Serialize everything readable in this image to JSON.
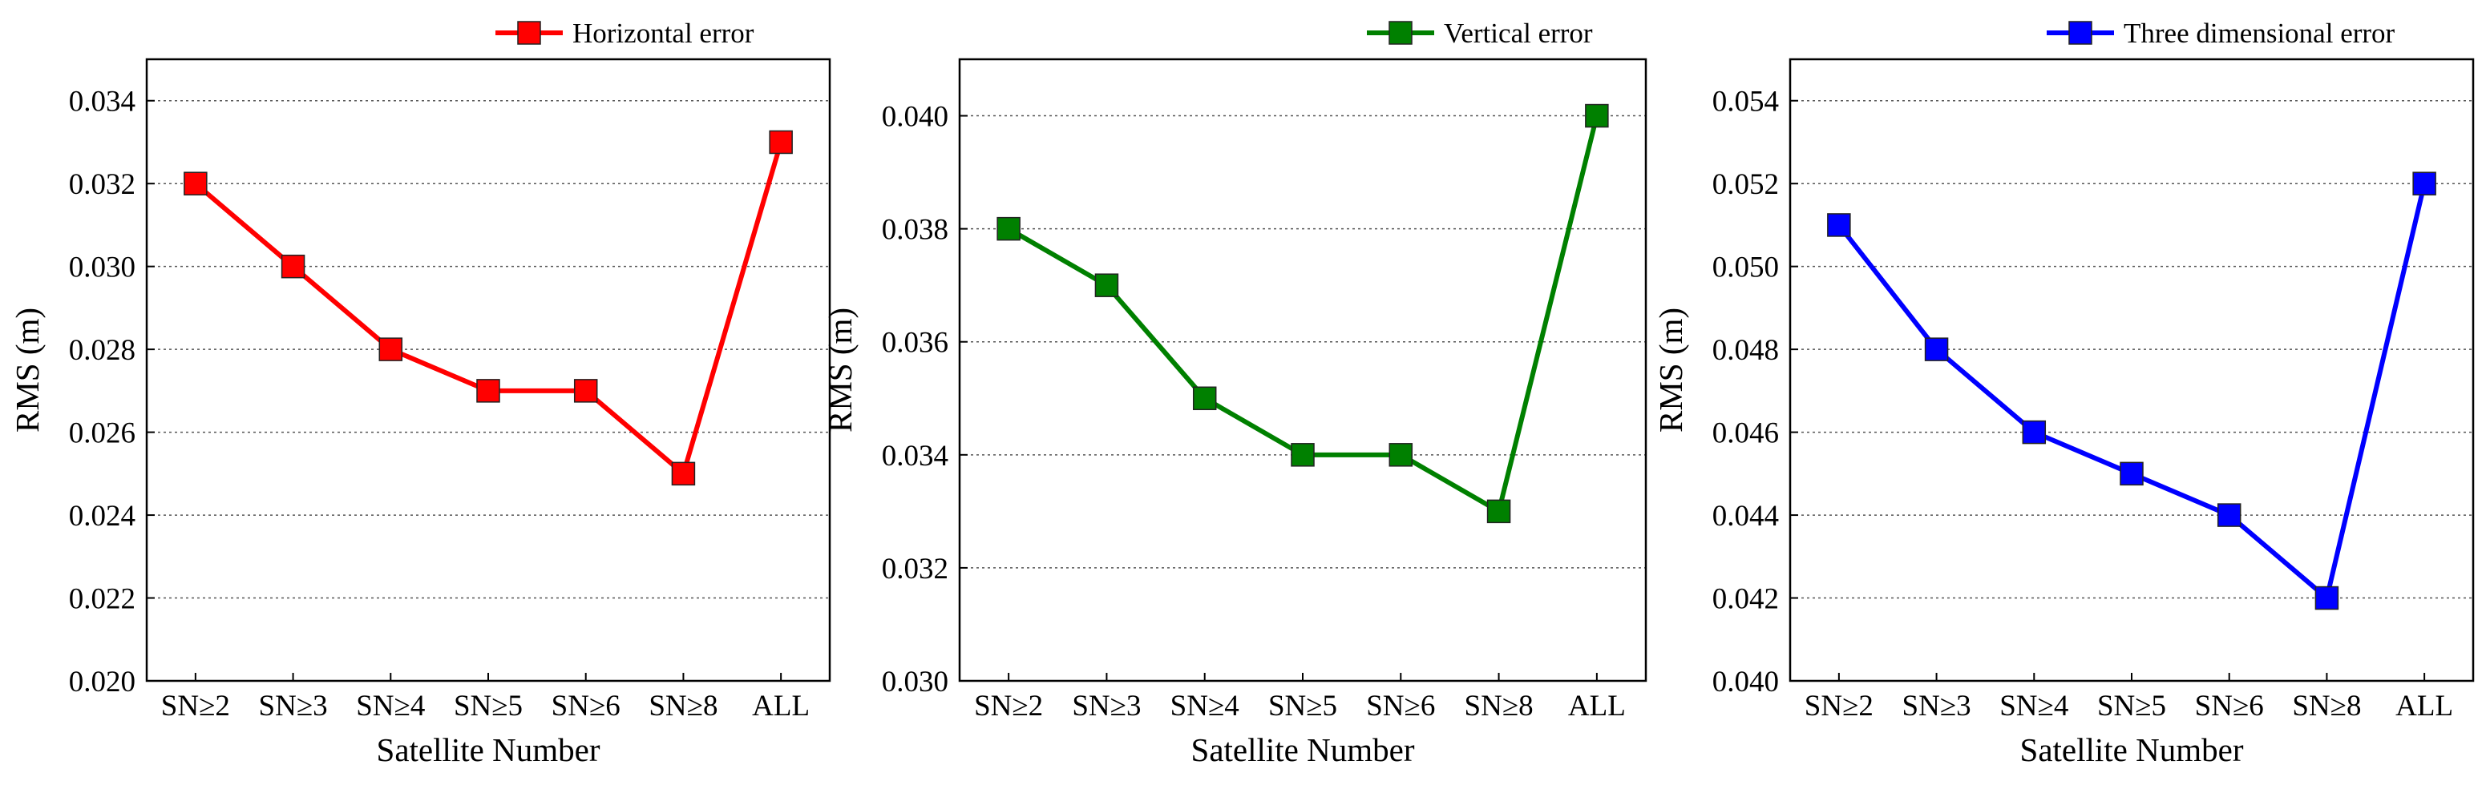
{
  "chart_data": [
    {
      "type": "line",
      "categories": [
        "SN≥2",
        "SN≥3",
        "SN≥4",
        "SN≥5",
        "SN≥6",
        "SN≥8",
        "ALL"
      ],
      "series": [
        {
          "name": "Horizontal error",
          "color": "#ff0000",
          "values": [
            0.032,
            0.03,
            0.028,
            0.027,
            0.027,
            0.025,
            0.033
          ]
        }
      ],
      "xlabel": "Satellite Number",
      "ylabel": "RMS (m)",
      "ylim": [
        0.02,
        0.035
      ],
      "yticks": [
        "0.020",
        "0.022",
        "0.024",
        "0.026",
        "0.028",
        "0.030",
        "0.032",
        "0.034"
      ],
      "grid": "horizontal dotted",
      "legend": "top-right, above plot"
    },
    {
      "type": "line",
      "categories": [
        "SN≥2",
        "SN≥3",
        "SN≥4",
        "SN≥5",
        "SN≥6",
        "SN≥8",
        "ALL"
      ],
      "series": [
        {
          "name": "Vertical error",
          "color": "#008000",
          "values": [
            0.038,
            0.037,
            0.035,
            0.034,
            0.034,
            0.033,
            0.04
          ]
        }
      ],
      "xlabel": "Satellite Number",
      "ylabel": "RMS (m)",
      "ylim": [
        0.03,
        0.041
      ],
      "yticks": [
        "0.030",
        "0.032",
        "0.034",
        "0.036",
        "0.038",
        "0.040"
      ],
      "grid": "horizontal dotted",
      "legend": "top-right, above plot"
    },
    {
      "type": "line",
      "categories": [
        "SN≥2",
        "SN≥3",
        "SN≥4",
        "SN≥5",
        "SN≥6",
        "SN≥8",
        "ALL"
      ],
      "series": [
        {
          "name": "Three dimensional error",
          "color": "#0000ff",
          "values": [
            0.051,
            0.048,
            0.046,
            0.045,
            0.044,
            0.042,
            0.052
          ]
        }
      ],
      "xlabel": "Satellite Number",
      "ylabel": "RMS (m)",
      "ylim": [
        0.04,
        0.055
      ],
      "yticks": [
        "0.040",
        "0.042",
        "0.044",
        "0.046",
        "0.048",
        "0.050",
        "0.052",
        "0.054"
      ],
      "grid": "horizontal dotted",
      "legend": "top-right, above plot"
    }
  ]
}
